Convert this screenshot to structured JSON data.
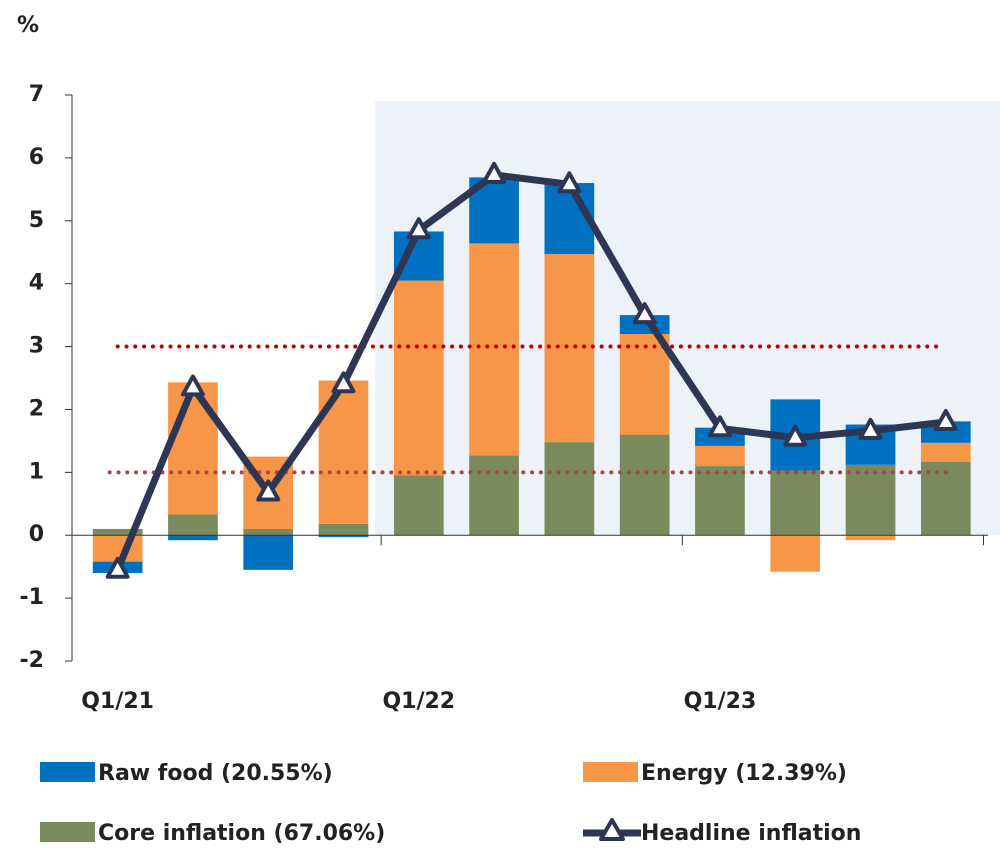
{
  "chart_data": {
    "type": "bar",
    "y_label": "%",
    "categories": [
      "Q1/21",
      null,
      null,
      null,
      "Q1/22",
      null,
      null,
      null,
      "Q1/23",
      null,
      null,
      null
    ],
    "series": [
      {
        "name": "Raw food (20.55%)",
        "type": "bar",
        "color": "#0070c0",
        "values": [
          -0.18,
          -0.08,
          -0.55,
          -0.03,
          0.78,
          1.05,
          1.13,
          0.3,
          0.29,
          1.13,
          0.64,
          0.34
        ]
      },
      {
        "name": "Energy (12.39%)",
        "type": "bar",
        "color": "#f79646",
        "values": [
          -0.42,
          2.1,
          1.15,
          2.28,
          3.1,
          3.37,
          2.99,
          1.6,
          0.32,
          -0.58,
          -0.08,
          0.3
        ]
      },
      {
        "name": "Core inflation (67.06%)",
        "type": "bar",
        "color": "#7a8a5c",
        "values": [
          0.1,
          0.33,
          0.1,
          0.18,
          0.95,
          1.27,
          1.48,
          1.6,
          1.1,
          1.03,
          1.12,
          1.17
        ]
      },
      {
        "name": "Headline inflation",
        "type": "line",
        "color": "#2e3656",
        "values": [
          -0.55,
          2.35,
          0.68,
          2.4,
          4.85,
          5.73,
          5.58,
          3.5,
          1.7,
          1.55,
          1.66,
          1.8
        ]
      }
    ],
    "reference_lines": [
      {
        "value": 3,
        "color": "#c00000"
      },
      {
        "value": 1,
        "color": "#a84848"
      }
    ],
    "highlight_start": 4,
    "highlight_color": "#edf1f8",
    "ylim": [
      -2,
      7
    ],
    "yticks": [
      -2,
      -1,
      0,
      1,
      2,
      3,
      4,
      5,
      6,
      7
    ]
  }
}
